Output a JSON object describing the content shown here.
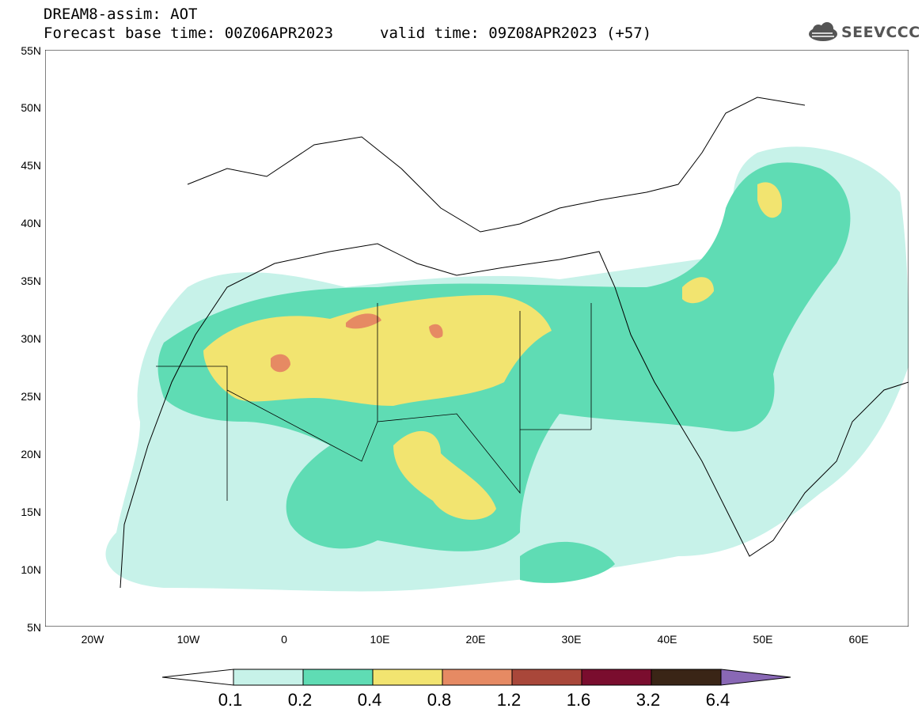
{
  "header": {
    "line1": "DREAM8-assim: AOT",
    "line2": "Forecast base time: 00Z06APR2023",
    "valid": "valid time: 09Z08APR2023 (+57)",
    "logo_text": "SEEVCCC",
    "logo_icon": "cloud-icon"
  },
  "map": {
    "variable": "AOT",
    "lat_range": [
      5,
      55
    ],
    "lon_range": [
      -25,
      65
    ],
    "lat_labels": [
      "55N",
      "50N",
      "45N",
      "40N",
      "35N",
      "30N",
      "25N",
      "20N",
      "15N",
      "10N",
      "5N"
    ],
    "lon_labels": [
      "20W",
      "10W",
      "0",
      "10E",
      "20E",
      "30E",
      "40E",
      "50E",
      "60E"
    ]
  },
  "legend": {
    "levels": [
      "0.1",
      "0.2",
      "0.4",
      "0.8",
      "1.2",
      "1.6",
      "3.2",
      "6.4"
    ],
    "colors": [
      "#c7f2e9",
      "#5fdcb4",
      "#f2e470",
      "#e68a63",
      "#a9473a",
      "#7a0d2e",
      "#3a2516",
      "#8968b5"
    ]
  }
}
